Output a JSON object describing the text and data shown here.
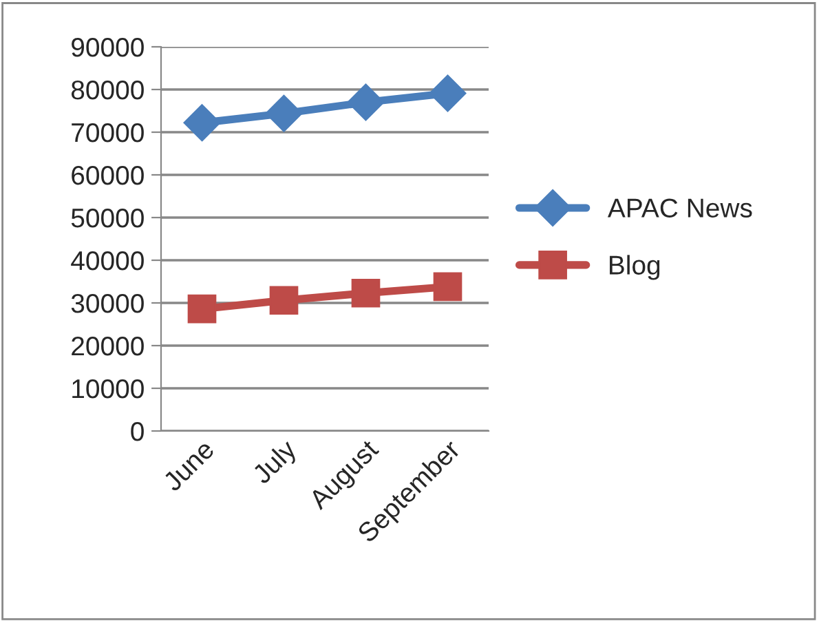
{
  "chart_data": {
    "type": "line",
    "categories": [
      "June",
      "July",
      "August",
      "September"
    ],
    "series": [
      {
        "name": "APAC News",
        "color": "#4a7ebb",
        "values": [
          72200,
          74400,
          77000,
          79100
        ],
        "marker": "diamond"
      },
      {
        "name": "Blog",
        "color": "#be4b48",
        "values": [
          28600,
          30600,
          32300,
          33800
        ],
        "marker": "square"
      }
    ],
    "ylim": [
      0,
      90000
    ],
    "yticks": [
      0,
      10000,
      20000,
      30000,
      40000,
      50000,
      60000,
      70000,
      80000,
      90000
    ],
    "grid": "y",
    "legend": "right",
    "line_style": "solid"
  }
}
